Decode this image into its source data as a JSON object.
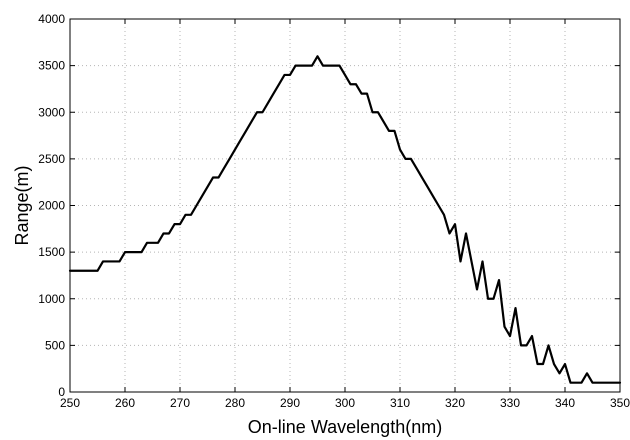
{
  "chart_data": {
    "type": "line",
    "title": "",
    "xlabel": "On-line Wavelength(nm)",
    "ylabel": "Range(m)",
    "xlim": [
      250,
      350
    ],
    "ylim": [
      0,
      4000
    ],
    "grid": true,
    "x_ticks": [
      250,
      260,
      270,
      280,
      290,
      300,
      310,
      320,
      330,
      340,
      350
    ],
    "y_ticks": [
      0,
      500,
      1000,
      1500,
      2000,
      2500,
      3000,
      3500,
      4000
    ],
    "line_color": "#000000",
    "series": [
      {
        "x": [
          250,
          255,
          256,
          258,
          259,
          260,
          262,
          263,
          264,
          265,
          266,
          267,
          268,
          269,
          270,
          271,
          272,
          273,
          274,
          276,
          277,
          278,
          279,
          280,
          281,
          282,
          283,
          284,
          285,
          286,
          287,
          288,
          289,
          290,
          291,
          292,
          293,
          294,
          295,
          296,
          297,
          298,
          299,
          300,
          301,
          302,
          303,
          304,
          305,
          306,
          307,
          308,
          309,
          310,
          311,
          312,
          313,
          314,
          315,
          316,
          317,
          318,
          319,
          320,
          321,
          322,
          323,
          324,
          325,
          326,
          327,
          328,
          329,
          330,
          331,
          332,
          333,
          334,
          335,
          336,
          337,
          338,
          339,
          340,
          341,
          342,
          343,
          344,
          345,
          350
        ],
        "y": [
          1300,
          1300,
          1400,
          1400,
          1400,
          1500,
          1500,
          1500,
          1600,
          1600,
          1600,
          1700,
          1700,
          1800,
          1800,
          1900,
          1900,
          2000,
          2100,
          2300,
          2300,
          2400,
          2500,
          2600,
          2700,
          2800,
          2900,
          3000,
          3000,
          3100,
          3200,
          3300,
          3400,
          3400,
          3500,
          3500,
          3500,
          3500,
          3600,
          3500,
          3500,
          3500,
          3500,
          3400,
          3300,
          3300,
          3200,
          3200,
          3000,
          3000,
          2900,
          2800,
          2800,
          2600,
          2500,
          2500,
          2400,
          2300,
          2200,
          2100,
          2000,
          1900,
          1700,
          1800,
          1400,
          1700,
          1400,
          1100,
          1400,
          1000,
          1000,
          1200,
          700,
          600,
          900,
          500,
          500,
          600,
          300,
          300,
          500,
          300,
          200,
          300,
          100,
          100,
          100,
          200,
          100,
          100
        ]
      }
    ]
  }
}
